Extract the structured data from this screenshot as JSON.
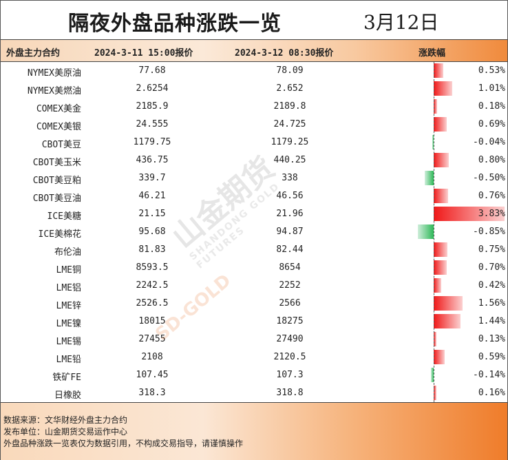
{
  "title": "隔夜外盘品种涨跌一览",
  "date": "3月12日",
  "header": {
    "col_name": "外盘主力合约",
    "col_price1": "2024-3-11 15:00报价",
    "col_price2": "2024-3-12 08:30报价",
    "col_change": "涨跌幅"
  },
  "watermark": {
    "brand": "山金期货",
    "sub": "SHANDONG GOLD FUTURES",
    "logo_text": "SD-GOLD"
  },
  "colors": {
    "up": "#f01818",
    "down": "#2eb858",
    "accent": "#ef7c2a"
  },
  "chart_data": {
    "type": "table",
    "columns": [
      "外盘主力合约",
      "2024-3-11 15:00报价",
      "2024-3-12 08:30报价",
      "涨跌幅"
    ],
    "rows": [
      {
        "name": "NYMEX美原油",
        "p1": "77.68",
        "p2": "78.09",
        "pct": "0.53%",
        "value": 0.53
      },
      {
        "name": "NYMEX美燃油",
        "p1": "2.6254",
        "p2": "2.652",
        "pct": "1.01%",
        "value": 1.01
      },
      {
        "name": "COMEX美金",
        "p1": "2185.9",
        "p2": "2189.8",
        "pct": "0.18%",
        "value": 0.18
      },
      {
        "name": "COMEX美银",
        "p1": "24.555",
        "p2": "24.725",
        "pct": "0.69%",
        "value": 0.69
      },
      {
        "name": "CBOT美豆",
        "p1": "1179.75",
        "p2": "1179.25",
        "pct": "-0.04%",
        "value": -0.04
      },
      {
        "name": "CBOT美玉米",
        "p1": "436.75",
        "p2": "440.25",
        "pct": "0.80%",
        "value": 0.8
      },
      {
        "name": "CBOT美豆粕",
        "p1": "339.7",
        "p2": "338",
        "pct": "-0.50%",
        "value": -0.5
      },
      {
        "name": "CBOT美豆油",
        "p1": "46.21",
        "p2": "46.56",
        "pct": "0.76%",
        "value": 0.76
      },
      {
        "name": "ICE美糖",
        "p1": "21.15",
        "p2": "21.96",
        "pct": "3.83%",
        "value": 3.83
      },
      {
        "name": "ICE美棉花",
        "p1": "95.68",
        "p2": "94.87",
        "pct": "-0.85%",
        "value": -0.85
      },
      {
        "name": "布伦油",
        "p1": "81.83",
        "p2": "82.44",
        "pct": "0.75%",
        "value": 0.75
      },
      {
        "name": "LME铜",
        "p1": "8593.5",
        "p2": "8654",
        "pct": "0.70%",
        "value": 0.7
      },
      {
        "name": "LME铝",
        "p1": "2242.5",
        "p2": "2252",
        "pct": "0.42%",
        "value": 0.42
      },
      {
        "name": "LME锌",
        "p1": "2526.5",
        "p2": "2566",
        "pct": "1.56%",
        "value": 1.56
      },
      {
        "name": "LME镍",
        "p1": "18015",
        "p2": "18275",
        "pct": "1.44%",
        "value": 1.44
      },
      {
        "name": "LME锡",
        "p1": "27455",
        "p2": "27490",
        "pct": "0.13%",
        "value": 0.13
      },
      {
        "name": "LME铅",
        "p1": "2108",
        "p2": "2120.5",
        "pct": "0.59%",
        "value": 0.59
      },
      {
        "name": "铁矿FE",
        "p1": "107.45",
        "p2": "107.3",
        "pct": "-0.14%",
        "value": -0.14
      },
      {
        "name": "日橡胶",
        "p1": "318.3",
        "p2": "318.8",
        "pct": "0.16%",
        "value": 0.16
      }
    ]
  },
  "footer": {
    "line1": "数据来源：文华财经外盘主力合约",
    "line2": "发布单位：山金期货交易运作中心",
    "line3": "外盘品种涨跌一览表仅为数据引用，不构成交易指导，请谨慎操作"
  }
}
